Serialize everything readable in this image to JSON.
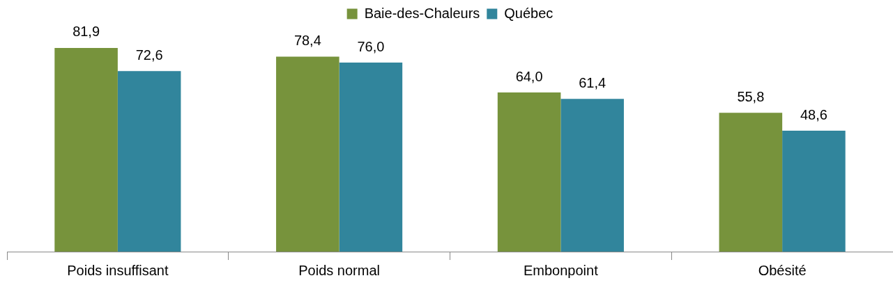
{
  "chart_data": {
    "type": "bar",
    "categories": [
      "Poids insuffisant",
      "Poids normal",
      "Embonpoint",
      "Obésité"
    ],
    "series": [
      {
        "name": "Baie-des-Chaleurs",
        "color": "#77933c",
        "values": [
          81.9,
          78.4,
          64.0,
          55.8
        ],
        "value_labels": [
          "81,9",
          "78,4",
          "64,0",
          "55,8"
        ]
      },
      {
        "name": "Québec",
        "color": "#31859c",
        "values": [
          72.6,
          76.0,
          61.4,
          48.6
        ],
        "value_labels": [
          "72,6",
          "76,0",
          "61,4",
          "48,6"
        ]
      }
    ],
    "legend": "top",
    "grid": false
  }
}
